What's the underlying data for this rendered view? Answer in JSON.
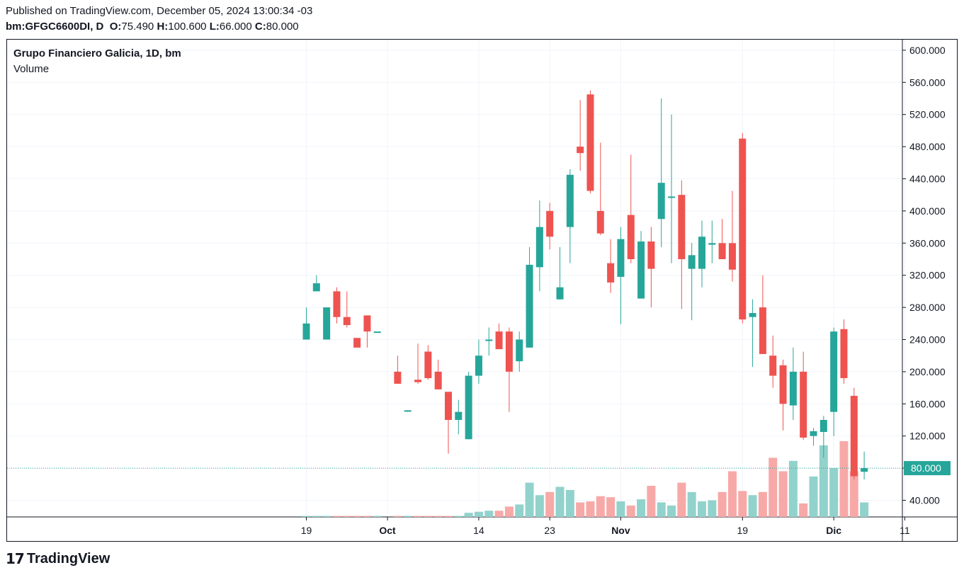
{
  "header": {
    "published": "Published on TradingView.com, December 05, 2024 13:00:34 -03",
    "symbol": "bm:GFGC6600DI, D",
    "o_label": "O:",
    "o_value": "75.490",
    "h_label": "H:",
    "h_value": "100.600",
    "l_label": "L:",
    "l_value": "66.000",
    "c_label": "C:",
    "c_value": "80.000"
  },
  "legend": {
    "title": "Grupo Financiero Galicia, 1D, bm",
    "subtitle": "Volume"
  },
  "footer": {
    "brand": "TradingView",
    "logo_mark": "17"
  },
  "colors": {
    "up": "#26a69a",
    "down": "#ef5350",
    "vol_up": "#92d2cc",
    "vol_down": "#f7a9a7",
    "grid": "#f0f3fa",
    "price_label_bg": "#26a69a"
  },
  "chart_data": {
    "type": "candlestick",
    "y_ticks": [
      "40.000",
      "80.000",
      "120.000",
      "160.000",
      "200.000",
      "240.000",
      "280.000",
      "320.000",
      "360.000",
      "400.000",
      "440.000",
      "480.000",
      "520.000",
      "560.000",
      "600.000"
    ],
    "ylim": [
      20,
      604
    ],
    "x_ticks": [
      {
        "label": "19",
        "bold": false
      },
      {
        "label": "Oct",
        "bold": true
      },
      {
        "label": "14",
        "bold": false
      },
      {
        "label": "23",
        "bold": false
      },
      {
        "label": "Nov",
        "bold": true
      },
      {
        "label": "19",
        "bold": false
      },
      {
        "label": "Dic",
        "bold": true
      },
      {
        "label": "11",
        "bold": false
      }
    ],
    "last_price": "80.000",
    "candles": [
      {
        "date": "2024-09-19",
        "o": 240,
        "h": 280,
        "l": 240,
        "c": 260,
        "v": 1
      },
      {
        "date": "2024-09-20",
        "o": 300,
        "h": 320,
        "l": 300,
        "c": 310,
        "v": 1
      },
      {
        "date": "2024-09-23",
        "o": 240,
        "h": 280,
        "l": 240,
        "c": 280,
        "v": 1
      },
      {
        "date": "2024-09-24",
        "o": 300,
        "h": 305,
        "l": 260,
        "c": 268,
        "v": 1
      },
      {
        "date": "2024-09-25",
        "o": 268,
        "h": 300,
        "l": 255,
        "c": 258,
        "v": 1
      },
      {
        "date": "2024-09-26",
        "o": 242,
        "h": 242,
        "l": 230,
        "c": 230,
        "v": 1
      },
      {
        "date": "2024-09-27",
        "o": 270,
        "h": 270,
        "l": 230,
        "c": 250,
        "v": 1
      },
      {
        "date": "2024-09-30",
        "o": 250,
        "h": 250,
        "l": 250,
        "c": 250,
        "v": 1
      },
      {
        "date": "2024-10-02",
        "o": 200,
        "h": 220,
        "l": 185,
        "c": 185,
        "v": 1
      },
      {
        "date": "2024-10-03",
        "o": 152,
        "h": 152,
        "l": 150,
        "c": 152,
        "v": 1
      },
      {
        "date": "2024-10-04",
        "o": 190,
        "h": 235,
        "l": 185,
        "c": 187,
        "v": 1
      },
      {
        "date": "2024-10-07",
        "o": 225,
        "h": 233,
        "l": 190,
        "c": 192,
        "v": 1
      },
      {
        "date": "2024-10-08",
        "o": 200,
        "h": 215,
        "l": 178,
        "c": 178,
        "v": 1
      },
      {
        "date": "2024-10-09",
        "o": 175,
        "h": 175,
        "l": 98,
        "c": 140,
        "v": 1
      },
      {
        "date": "2024-10-10",
        "o": 140,
        "h": 165,
        "l": 122,
        "c": 150,
        "v": 1
      },
      {
        "date": "2024-10-11",
        "o": 116,
        "h": 200,
        "l": 116,
        "c": 195,
        "v": 4
      },
      {
        "date": "2024-10-14",
        "o": 195,
        "h": 240,
        "l": 185,
        "c": 220,
        "v": 5
      },
      {
        "date": "2024-10-15",
        "o": 240,
        "h": 255,
        "l": 220,
        "c": 240,
        "v": 6
      },
      {
        "date": "2024-10-16",
        "o": 250,
        "h": 260,
        "l": 228,
        "c": 228,
        "v": 6
      },
      {
        "date": "2024-10-17",
        "o": 250,
        "h": 255,
        "l": 150,
        "c": 200,
        "v": 10
      },
      {
        "date": "2024-10-18",
        "o": 213,
        "h": 250,
        "l": 200,
        "c": 240,
        "v": 12
      },
      {
        "date": "2024-10-21",
        "o": 230,
        "h": 355,
        "l": 230,
        "c": 333,
        "v": 33
      },
      {
        "date": "2024-10-22",
        "o": 330,
        "h": 413,
        "l": 300,
        "c": 380,
        "v": 21
      },
      {
        "date": "2024-10-23",
        "o": 400,
        "h": 410,
        "l": 352,
        "c": 368,
        "v": 24
      },
      {
        "date": "2024-10-24",
        "o": 290,
        "h": 355,
        "l": 290,
        "c": 305,
        "v": 29
      },
      {
        "date": "2024-10-25",
        "o": 380,
        "h": 452,
        "l": 335,
        "c": 445,
        "v": 26
      },
      {
        "date": "2024-10-28",
        "o": 480,
        "h": 538,
        "l": 450,
        "c": 472,
        "v": 14
      },
      {
        "date": "2024-10-29",
        "o": 545,
        "h": 550,
        "l": 422,
        "c": 425,
        "v": 15
      },
      {
        "date": "2024-10-30",
        "o": 400,
        "h": 485,
        "l": 370,
        "c": 372,
        "v": 20
      },
      {
        "date": "2024-10-31",
        "o": 335,
        "h": 365,
        "l": 298,
        "c": 311,
        "v": 19
      },
      {
        "date": "2024-11-01",
        "o": 318,
        "h": 380,
        "l": 259,
        "c": 365,
        "v": 15
      },
      {
        "date": "2024-11-04",
        "o": 395,
        "h": 470,
        "l": 335,
        "c": 340,
        "v": 11
      },
      {
        "date": "2024-11-05",
        "o": 291,
        "h": 375,
        "l": 291,
        "c": 362,
        "v": 17
      },
      {
        "date": "2024-11-06",
        "o": 362,
        "h": 380,
        "l": 280,
        "c": 328,
        "v": 30
      },
      {
        "date": "2024-11-07",
        "o": 390,
        "h": 540,
        "l": 355,
        "c": 435,
        "v": 14
      },
      {
        "date": "2024-11-08",
        "o": 418,
        "h": 520,
        "l": 335,
        "c": 418,
        "v": 11
      },
      {
        "date": "2024-11-11",
        "o": 420,
        "h": 438,
        "l": 278,
        "c": 340,
        "v": 33
      },
      {
        "date": "2024-11-12",
        "o": 328,
        "h": 360,
        "l": 264,
        "c": 345,
        "v": 24
      },
      {
        "date": "2024-11-13",
        "o": 328,
        "h": 388,
        "l": 305,
        "c": 368,
        "v": 15
      },
      {
        "date": "2024-11-14",
        "o": 358,
        "h": 388,
        "l": 335,
        "c": 360,
        "v": 16
      },
      {
        "date": "2024-11-15",
        "o": 360,
        "h": 390,
        "l": 340,
        "c": 340,
        "v": 24
      },
      {
        "date": "2024-11-18",
        "o": 360,
        "h": 425,
        "l": 312,
        "c": 327,
        "v": 44
      },
      {
        "date": "2024-11-19",
        "o": 490,
        "h": 497,
        "l": 260,
        "c": 265,
        "v": 25
      },
      {
        "date": "2024-11-20",
        "o": 268,
        "h": 290,
        "l": 206,
        "c": 273,
        "v": 21
      },
      {
        "date": "2024-11-21",
        "o": 280,
        "h": 320,
        "l": 222,
        "c": 222,
        "v": 24
      },
      {
        "date": "2024-11-22",
        "o": 220,
        "h": 245,
        "l": 180,
        "c": 195,
        "v": 57
      },
      {
        "date": "2024-11-25",
        "o": 208,
        "h": 215,
        "l": 127,
        "c": 160,
        "v": 44
      },
      {
        "date": "2024-11-26",
        "o": 158,
        "h": 230,
        "l": 140,
        "c": 200,
        "v": 54
      },
      {
        "date": "2024-11-27",
        "o": 200,
        "h": 225,
        "l": 115,
        "c": 118,
        "v": 13
      },
      {
        "date": "2024-11-28",
        "o": 120,
        "h": 130,
        "l": 108,
        "c": 126,
        "v": 39
      },
      {
        "date": "2024-11-29",
        "o": 125,
        "h": 145,
        "l": 93,
        "c": 140,
        "v": 69
      },
      {
        "date": "2024-12-02",
        "o": 150,
        "h": 255,
        "l": 120,
        "c": 250,
        "v": 47
      },
      {
        "date": "2024-12-03",
        "o": 253,
        "h": 265,
        "l": 185,
        "c": 192,
        "v": 73
      },
      {
        "date": "2024-12-04",
        "o": 170,
        "h": 180,
        "l": 66,
        "c": 70,
        "v": 44
      },
      {
        "date": "2024-12-05",
        "o": 75.49,
        "h": 100.6,
        "l": 66,
        "c": 80,
        "v": 14
      }
    ]
  }
}
